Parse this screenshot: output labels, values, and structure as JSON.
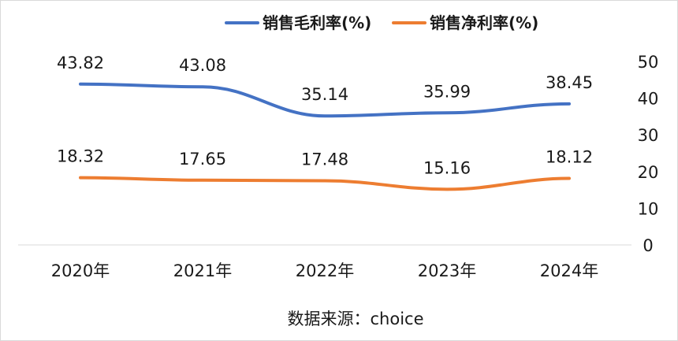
{
  "chart_data": {
    "type": "line",
    "categories": [
      "2020年",
      "2021年",
      "2022年",
      "2023年",
      "2024年"
    ],
    "series": [
      {
        "name": "销售毛利率(%)",
        "color": "#4472C4",
        "values": [
          43.82,
          43.08,
          35.14,
          35.99,
          38.45
        ],
        "labels": [
          "43.82",
          "43.08",
          "35.14",
          "35.99",
          "38.45"
        ]
      },
      {
        "name": "销售净利率(%)",
        "color": "#ED7D31",
        "values": [
          18.32,
          17.65,
          17.48,
          15.16,
          18.12
        ],
        "labels": [
          "18.32",
          "17.65",
          "17.48",
          "15.16",
          "18.12"
        ]
      }
    ],
    "yaxis": {
      "position": "right",
      "ticks": [
        0,
        10,
        20,
        30,
        40,
        50
      ],
      "ylim": [
        0,
        50
      ]
    },
    "legend": "top",
    "grid": false,
    "source": "数据来源：choice"
  }
}
